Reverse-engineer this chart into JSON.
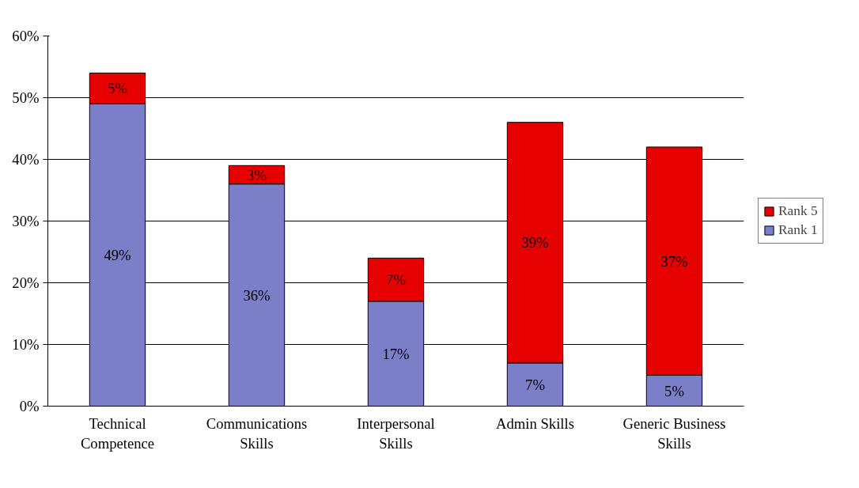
{
  "chart_data": {
    "type": "bar",
    "stacked": true,
    "categories": [
      "Technical\nCompetence",
      "Communications\nSkills",
      "Interpersonal\nSkills",
      "Admin Skills",
      "Generic Business\nSkills"
    ],
    "series": [
      {
        "name": "Rank 1",
        "color": "#7b7fc8",
        "values": [
          49,
          36,
          17,
          7,
          5
        ],
        "value_labels": [
          "49%",
          "36%",
          "17%",
          "7%",
          "5%"
        ]
      },
      {
        "name": "Rank 5",
        "color": "#e60000",
        "values": [
          5,
          3,
          7,
          39,
          37
        ],
        "value_labels": [
          "5%",
          "3%",
          "7%",
          "39%",
          "37%"
        ]
      }
    ],
    "ylim": [
      0,
      60
    ],
    "yticks": [
      {
        "value": 0,
        "label": "0%"
      },
      {
        "value": 10,
        "label": "10%"
      },
      {
        "value": 20,
        "label": "20%"
      },
      {
        "value": 30,
        "label": "30%"
      },
      {
        "value": 40,
        "label": "40%"
      },
      {
        "value": 50,
        "label": "50%"
      },
      {
        "value": 60,
        "label": "60%"
      }
    ],
    "grid": "y",
    "legend": "right"
  }
}
